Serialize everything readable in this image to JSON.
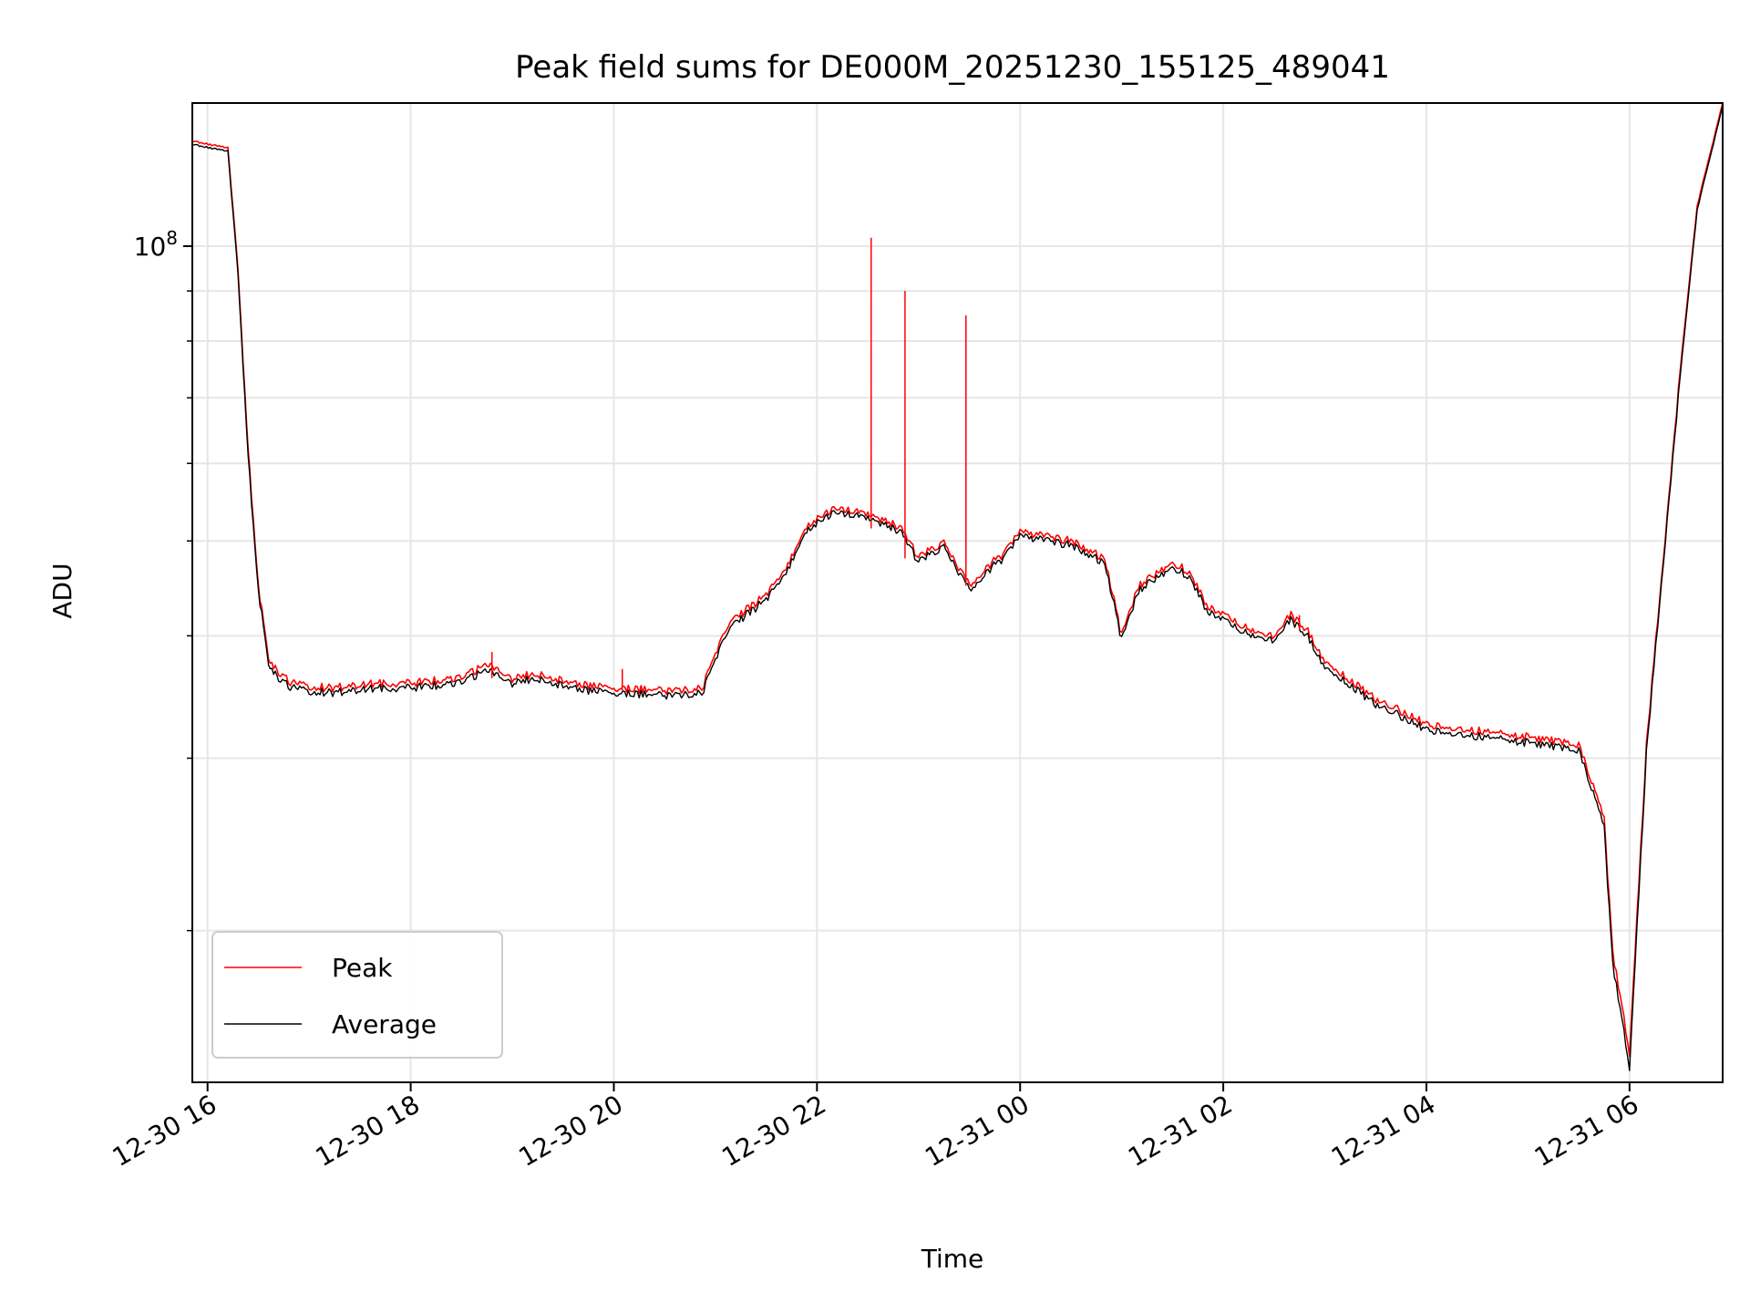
{
  "chart_data": {
    "type": "line",
    "title": "Peak field sums for DE000M_20251230_155125_489041",
    "xlabel": "Time",
    "ylabel": "ADU",
    "y_scale": "log",
    "y_tick_label": "10^8",
    "ylim": [
      14000000,
      140000000
    ],
    "xlim": [
      "2025-12-30 15:51",
      "2025-12-31 06:55"
    ],
    "x_tick_labels": [
      "12-30 16",
      "12-30 18",
      "12-30 20",
      "12-30 22",
      "12-31 00",
      "12-31 02",
      "12-31 04",
      "12-31 06"
    ],
    "x_ticks": [
      "2025-12-30 16:00",
      "2025-12-30 18:00",
      "2025-12-30 20:00",
      "2025-12-30 22:00",
      "2025-12-31 00:00",
      "2025-12-31 02:00",
      "2025-12-31 04:00",
      "2025-12-31 06:00"
    ],
    "grid": true,
    "legend": "lower-left",
    "x": [
      "2025-12-30 15:51",
      "2025-12-30 16:12",
      "2025-12-30 16:18",
      "2025-12-30 16:24",
      "2025-12-30 16:30",
      "2025-12-30 16:36",
      "2025-12-30 16:42",
      "2025-12-30 16:50",
      "2025-12-30 17:00",
      "2025-12-30 17:15",
      "2025-12-30 17:30",
      "2025-12-30 18:00",
      "2025-12-30 18:30",
      "2025-12-30 18:45",
      "2025-12-30 19:00",
      "2025-12-30 19:15",
      "2025-12-30 19:30",
      "2025-12-30 19:45",
      "2025-12-30 20:00",
      "2025-12-30 20:30",
      "2025-12-30 20:52",
      "2025-12-30 21:00",
      "2025-12-30 21:10",
      "2025-12-30 21:30",
      "2025-12-30 21:45",
      "2025-12-30 21:55",
      "2025-12-30 22:10",
      "2025-12-30 22:30",
      "2025-12-30 22:50",
      "2025-12-30 23:00",
      "2025-12-30 23:15",
      "2025-12-30 23:30",
      "2025-12-30 23:40",
      "2025-12-30 23:50",
      "2025-12-31 00:00",
      "2025-12-31 00:15",
      "2025-12-31 00:30",
      "2025-12-31 00:50",
      "2025-12-31 01:00",
      "2025-12-31 01:10",
      "2025-12-31 01:30",
      "2025-12-31 01:40",
      "2025-12-31 01:50",
      "2025-12-31 02:10",
      "2025-12-31 02:30",
      "2025-12-31 02:40",
      "2025-12-31 02:50",
      "2025-12-31 03:00",
      "2025-12-31 03:15",
      "2025-12-31 03:30",
      "2025-12-31 03:45",
      "2025-12-31 04:00",
      "2025-12-31 04:30",
      "2025-12-31 05:00",
      "2025-12-31 05:30",
      "2025-12-31 05:45",
      "2025-12-31 05:50",
      "2025-12-31 06:00",
      "2025-12-31 06:10",
      "2025-12-31 06:20",
      "2025-12-31 06:30",
      "2025-12-31 06:40",
      "2025-12-31 06:55"
    ],
    "series": [
      {
        "name": "Peak",
        "color": "#ff0000",
        "values": [
          128000000,
          126000000,
          95000000,
          62000000,
          45000000,
          38000000,
          36500000,
          35800000,
          35500000,
          35400000,
          35700000,
          35800000,
          36200000,
          37500000,
          36200000,
          36600000,
          36000000,
          35600000,
          35300000,
          35200000,
          35300000,
          38500000,
          41500000,
          44000000,
          48000000,
          52000000,
          54000000,
          53500000,
          51500000,
          48000000,
          50000000,
          45000000,
          47000000,
          48500000,
          51000000,
          50500000,
          50000000,
          48000000,
          40000000,
          45000000,
          47500000,
          46500000,
          43000000,
          41000000,
          40000000,
          42000000,
          40500000,
          37500000,
          36000000,
          34500000,
          33500000,
          32500000,
          32000000,
          31500000,
          31000000,
          26000000,
          19000000,
          15000000,
          31000000,
          48000000,
          75000000,
          110000000,
          140000000
        ]
      },
      {
        "name": "Average",
        "color": "#000000",
        "values": [
          127000000,
          125000000,
          94000000,
          61000000,
          44500000,
          37500000,
          36000000,
          35400000,
          35100000,
          35000000,
          35300000,
          35400000,
          35800000,
          37000000,
          35800000,
          36200000,
          35600000,
          35200000,
          34900000,
          34800000,
          34900000,
          38000000,
          41000000,
          43500000,
          47500000,
          51500000,
          53500000,
          53000000,
          51000000,
          47500000,
          49500000,
          44500000,
          46500000,
          48000000,
          50500000,
          50000000,
          49500000,
          47500000,
          39600000,
          44500000,
          47000000,
          46000000,
          42500000,
          40500000,
          39600000,
          41500000,
          40000000,
          37000000,
          35600000,
          34100000,
          33100000,
          32100000,
          31600000,
          31100000,
          30600000,
          25500000,
          18500000,
          14500000,
          30500000,
          47500000,
          74000000,
          109000000,
          139000000
        ]
      }
    ]
  }
}
